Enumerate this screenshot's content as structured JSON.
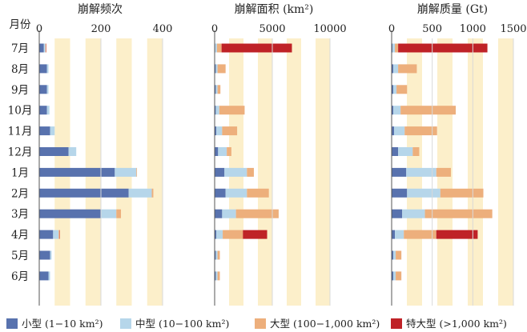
{
  "row_header": "月份",
  "months": [
    "7月",
    "8月",
    "9月",
    "10月",
    "11月",
    "12月",
    "1月",
    "2月",
    "3月",
    "4月",
    "5月",
    "6月"
  ],
  "colors": {
    "small": "#5872ae",
    "medium": "#b6d6ea",
    "large": "#edaf7c",
    "xlarge": "#bf2227",
    "band": "#fcefca",
    "axis": "#555555"
  },
  "legend": [
    {
      "key": "small",
      "label": "小型 (1−10 km²)"
    },
    {
      "key": "medium",
      "label": "中型 (10−100 km²)"
    },
    {
      "key": "large",
      "label": "大型 (100−1,000 km²)"
    },
    {
      "key": "xlarge",
      "label": "特大型 (>1,000 km²)"
    }
  ],
  "chart_data": [
    {
      "type": "bar",
      "orientation": "horizontal",
      "stacked": true,
      "title": "崩解频次",
      "xlim": [
        0,
        400
      ],
      "ticks": [
        0,
        200,
        400
      ],
      "categories": [
        "7月",
        "8月",
        "9月",
        "10月",
        "11月",
        "12月",
        "1月",
        "2月",
        "3月",
        "4月",
        "5月",
        "6月"
      ],
      "series": [
        {
          "name": "小型 (1−10 km²)",
          "key": "small",
          "values": [
            15,
            25,
            25,
            25,
            35,
            95,
            245,
            290,
            200,
            45,
            35,
            30
          ]
        },
        {
          "name": "中型 (10−100 km²)",
          "key": "medium",
          "values": [
            5,
            5,
            5,
            8,
            15,
            25,
            70,
            75,
            50,
            18,
            5,
            5
          ]
        },
        {
          "name": "大型 (100−1,000 km²)",
          "key": "large",
          "values": [
            2,
            0,
            0,
            0,
            0,
            0,
            2,
            5,
            15,
            3,
            0,
            0
          ]
        },
        {
          "name": "特大型 (>1,000 km²)",
          "key": "xlarge",
          "values": [
            1,
            0,
            0,
            0,
            0,
            0,
            0,
            0,
            0,
            1,
            0,
            0
          ]
        }
      ]
    },
    {
      "type": "bar",
      "orientation": "horizontal",
      "stacked": true,
      "title": "崩解面积 (km²)",
      "xlim": [
        0,
        10000
      ],
      "ticks": [
        0,
        5000,
        10000
      ],
      "categories": [
        "7月",
        "8月",
        "9月",
        "10月",
        "11月",
        "12月",
        "1月",
        "2月",
        "3月",
        "4月",
        "5月",
        "6月"
      ],
      "series": [
        {
          "name": "小型 (1−10 km²)",
          "key": "small",
          "values": [
            50,
            100,
            100,
            100,
            150,
            300,
            850,
            950,
            650,
            150,
            100,
            100
          ]
        },
        {
          "name": "中型 (10−100 km²)",
          "key": "medium",
          "values": [
            150,
            150,
            150,
            300,
            500,
            750,
            1950,
            1850,
            1200,
            550,
            150,
            150
          ]
        },
        {
          "name": "大型 (100−1,000 km²)",
          "key": "large",
          "values": [
            400,
            700,
            250,
            2200,
            1300,
            400,
            600,
            1900,
            3700,
            1750,
            200,
            200
          ]
        },
        {
          "name": "特大型 (>1,000 km²)",
          "key": "xlarge",
          "values": [
            6100,
            0,
            0,
            0,
            0,
            0,
            0,
            0,
            0,
            2100,
            0,
            0
          ]
        }
      ]
    },
    {
      "type": "bar",
      "orientation": "horizontal",
      "stacked": true,
      "title": "崩解质量 (Gt)",
      "xlim": [
        0,
        1500
      ],
      "ticks": [
        0,
        500,
        1000,
        1500
      ],
      "categories": [
        "7月",
        "8月",
        "9月",
        "10月",
        "11月",
        "12月",
        "1月",
        "2月",
        "3月",
        "4月",
        "5月",
        "6月"
      ],
      "series": [
        {
          "name": "小型 (1−10 km²)",
          "key": "small",
          "values": [
            10,
            20,
            20,
            20,
            30,
            80,
            180,
            190,
            130,
            40,
            20,
            20
          ]
        },
        {
          "name": "中型 (10−100 km²)",
          "key": "medium",
          "values": [
            30,
            60,
            40,
            90,
            130,
            180,
            370,
            410,
            280,
            110,
            30,
            30
          ]
        },
        {
          "name": "大型 (100−1,000 km²)",
          "key": "large",
          "values": [
            40,
            230,
            130,
            680,
            400,
            80,
            180,
            530,
            830,
            400,
            70,
            70
          ]
        },
        {
          "name": "特大型 (>1,000 km²)",
          "key": "xlarge",
          "values": [
            1100,
            0,
            0,
            0,
            0,
            0,
            0,
            0,
            0,
            510,
            0,
            0
          ]
        }
      ]
    }
  ]
}
